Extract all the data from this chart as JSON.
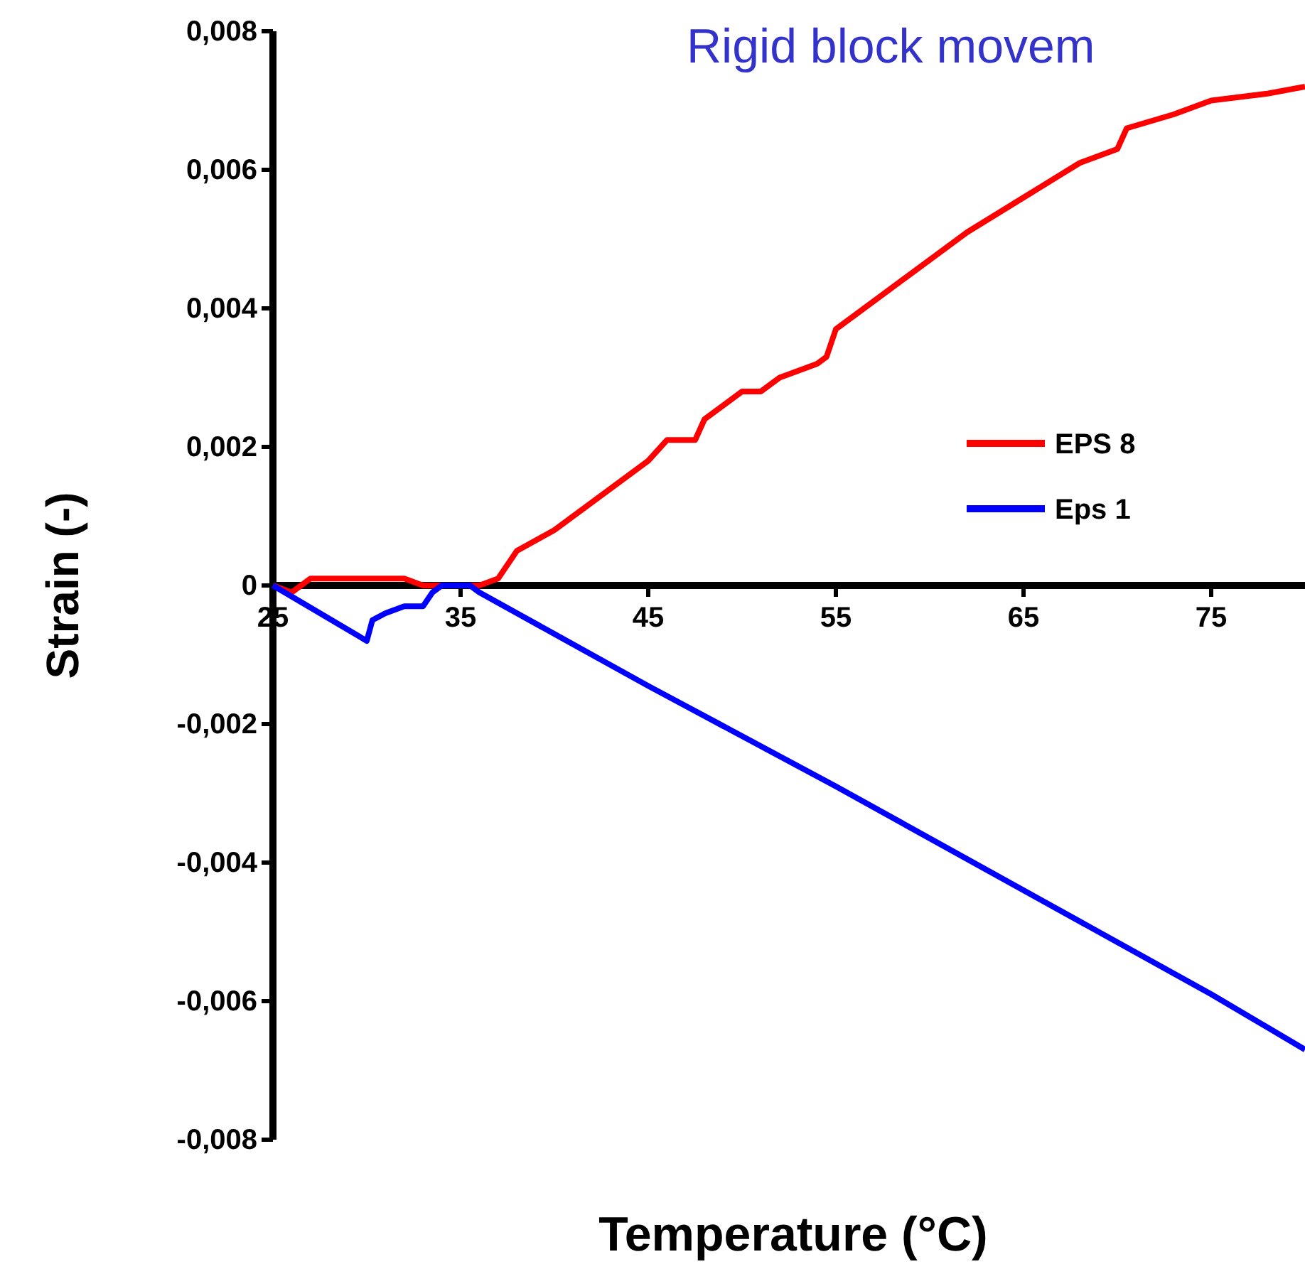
{
  "chart_data": {
    "type": "line",
    "title": "Rigid block movem",
    "xlabel": "Temperature (°C)",
    "ylabel": "Strain (-)",
    "xlim": [
      25,
      80
    ],
    "xticks": [
      25,
      35,
      45,
      55,
      65,
      75
    ],
    "ylim": [
      -0.008,
      0.008
    ],
    "yticks": [
      {
        "value": -0.008,
        "label": "-0,008"
      },
      {
        "value": -0.006,
        "label": "-0,006"
      },
      {
        "value": -0.004,
        "label": "-0,004"
      },
      {
        "value": -0.002,
        "label": "-0,002"
      },
      0,
      {
        "value": 0.002,
        "label": "0,002"
      },
      {
        "value": 0.004,
        "label": "0,004"
      },
      {
        "value": 0.006,
        "label": "0,006"
      },
      {
        "value": 0.008,
        "label": "0,008"
      }
    ],
    "grid": false,
    "legend": "right",
    "marker": "none",
    "line_style": "solid",
    "series": [
      {
        "name": "EPS 8",
        "color": "#ff0000",
        "x": [
          25,
          26,
          27,
          32,
          33,
          36,
          37,
          38,
          40,
          42,
          44,
          45,
          46,
          47.5,
          48,
          50,
          51,
          52,
          54,
          54.5,
          55,
          57,
          59,
          60,
          62,
          65,
          68,
          70,
          70.5,
          73,
          75,
          78,
          80
        ],
        "values": [
          0,
          -0.0001,
          0.0001,
          0.0001,
          0,
          0,
          0.0001,
          0.0005,
          0.0008,
          0.0012,
          0.0016,
          0.0018,
          0.0021,
          0.0021,
          0.0024,
          0.0028,
          0.0028,
          0.003,
          0.0032,
          0.0033,
          0.0037,
          0.0041,
          0.0045,
          0.0047,
          0.0051,
          0.0056,
          0.0061,
          0.0063,
          0.0066,
          0.0068,
          0.007,
          0.0071,
          0.0072
        ]
      },
      {
        "name": "Eps 1",
        "color": "#0000ff",
        "x": [
          25,
          30,
          30.3,
          31,
          32,
          33,
          33.5,
          34,
          35.5,
          36,
          38,
          40,
          45,
          55,
          65,
          75,
          80
        ],
        "values": [
          0,
          -0.0008,
          -0.0005,
          -0.0004,
          -0.0003,
          -0.0003,
          -0.0001,
          0,
          0,
          -0.0001,
          -0.0004,
          -0.0007,
          -0.00145,
          -0.0029,
          -0.0044,
          -0.0059,
          -0.0067
        ]
      }
    ]
  }
}
